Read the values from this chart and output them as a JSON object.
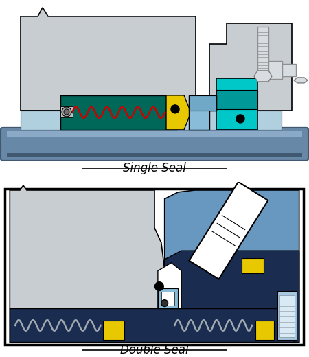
{
  "title1": "Single Seal",
  "title2": "Double Seal",
  "light_gray": "#c8cdd2",
  "light_gray2": "#d8dde2",
  "teal": "#00c8c8",
  "dark_teal": "#009898",
  "green_dark": "#006858",
  "yellow": "#e8c800",
  "light_blue": "#88bcd8",
  "med_blue": "#4878a8",
  "dark_blue": "#1a2d50",
  "navy": "#0a1830",
  "sky_blue": "#6898c0",
  "pale_blue": "#a8c8e0",
  "red": "#cc0000",
  "white": "#ffffff",
  "black": "#000000",
  "shaft_top": "#8aaac8",
  "shaft_mid": "#6888a8",
  "shaft_bot": "#405870",
  "bolt_gray": "#b0b8c0",
  "label_fontsize": 12,
  "fig_width": 4.5,
  "fig_height": 5.2
}
